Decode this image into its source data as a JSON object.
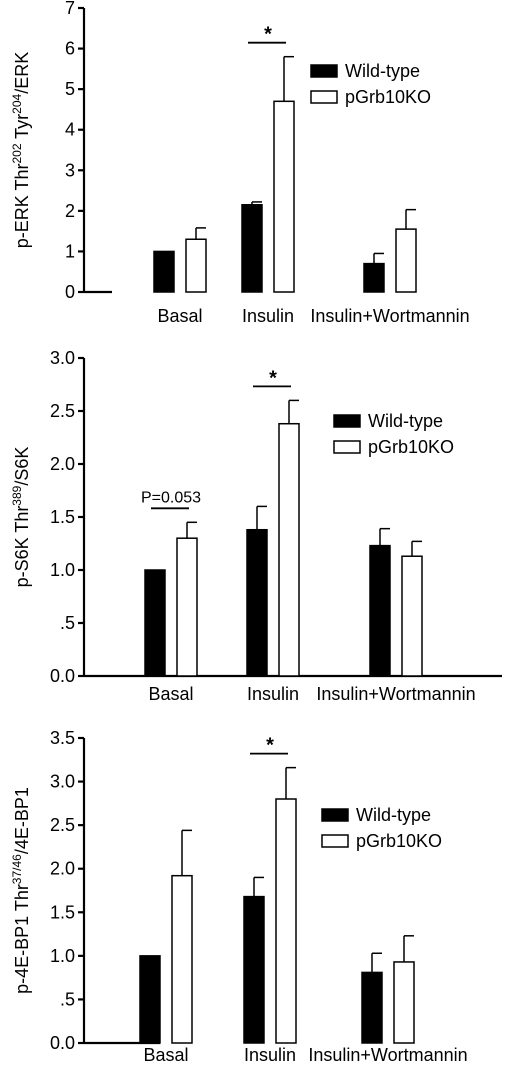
{
  "colors": {
    "wildtype": "#000000",
    "knockout": "#ffffff",
    "stroke": "#000000"
  },
  "chart_data": [
    {
      "type": "bar",
      "ylabel_parts": [
        "p-ERK Thr",
        "202",
        " Tyr",
        "204",
        "/ERK"
      ],
      "categories": [
        "Basal",
        "Insulin",
        "Insulin+Wortmannin"
      ],
      "yticks": [
        "0",
        "1",
        "2",
        "3",
        "4",
        "5",
        "6",
        "7"
      ],
      "ylim": [
        0,
        7
      ],
      "series": [
        {
          "name": "Wild-type",
          "values": [
            1.0,
            2.15,
            0.7
          ],
          "errors": [
            0.0,
            0.07,
            0.25
          ]
        },
        {
          "name": "pGrb10KO",
          "values": [
            1.3,
            4.7,
            1.55
          ],
          "errors": [
            0.28,
            1.1,
            0.48
          ]
        }
      ],
      "legend": {
        "position": "top-right"
      },
      "significance": [
        {
          "category_index": 1,
          "label": "*"
        }
      ]
    },
    {
      "type": "bar",
      "ylabel_parts": [
        "p-S6K Thr",
        "389",
        "/S6K"
      ],
      "categories": [
        "Basal",
        "Insulin",
        "Insulin+Wortmannin"
      ],
      "yticks": [
        "0.0",
        ".5",
        "1.0",
        "1.5",
        "2.0",
        "2.5",
        "3.0"
      ],
      "ylim": [
        0,
        3.0
      ],
      "series": [
        {
          "name": "Wild-type",
          "values": [
            1.0,
            1.38,
            1.23
          ],
          "errors": [
            0.0,
            0.22,
            0.16
          ]
        },
        {
          "name": "pGrb10KO",
          "values": [
            1.3,
            2.38,
            1.13
          ],
          "errors": [
            0.15,
            0.22,
            0.14
          ]
        }
      ],
      "legend": {
        "position": "top-right"
      },
      "significance": [
        {
          "category_index": 1,
          "label": "*"
        },
        {
          "category_index": 0,
          "label": "P=0.053"
        }
      ]
    },
    {
      "type": "bar",
      "ylabel_parts": [
        "p-4E-BP1 Thr",
        "37/46",
        "/4E-BP1"
      ],
      "categories": [
        "Basal",
        "Insulin",
        "Insulin+Wortmannin"
      ],
      "yticks": [
        "0.0",
        ".5",
        "1.0",
        "1.5",
        "2.0",
        "2.5",
        "3.0",
        "3.5"
      ],
      "ylim": [
        0,
        3.5
      ],
      "series": [
        {
          "name": "Wild-type",
          "values": [
            1.0,
            1.68,
            0.81
          ],
          "errors": [
            0.0,
            0.22,
            0.22
          ]
        },
        {
          "name": "pGrb10KO",
          "values": [
            1.92,
            2.8,
            0.93
          ],
          "errors": [
            0.52,
            0.36,
            0.3
          ]
        }
      ],
      "legend": {
        "position": "right"
      },
      "significance": [
        {
          "category_index": 1,
          "label": "*"
        }
      ]
    }
  ]
}
